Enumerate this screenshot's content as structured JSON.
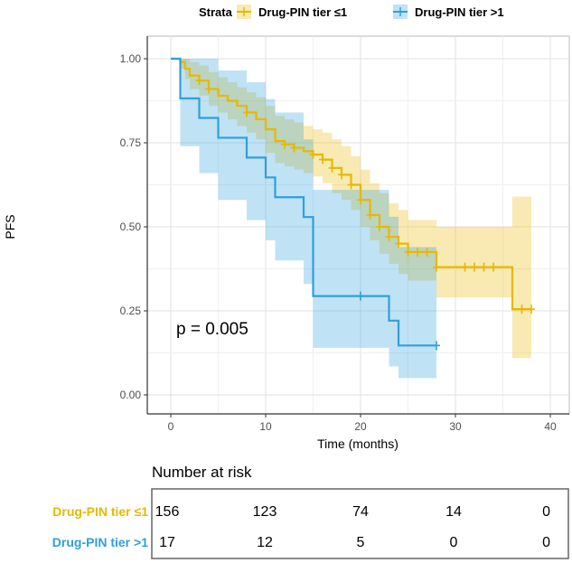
{
  "chart_data": {
    "type": "line",
    "subtype": "kaplan-meier",
    "title": "",
    "xlabel": "Time (months)",
    "ylabel": "PFS",
    "xlim": [
      0,
      40
    ],
    "ylim": [
      0,
      1
    ],
    "xticks": [
      "0",
      "10",
      "20",
      "30",
      "40"
    ],
    "yticks": [
      "0.00",
      "0.25",
      "0.50",
      "0.75",
      "1.00"
    ],
    "grid": true,
    "legend": {
      "title": "Strata",
      "placement": "top"
    },
    "annotation": "p = 0.005",
    "series": [
      {
        "name": "Drug-PIN tier ≤1",
        "color": "#E7B800",
        "times": [
          0,
          1,
          1.5,
          2,
          3,
          4,
          5,
          6,
          7,
          8,
          9,
          10,
          11,
          12,
          13,
          14,
          15,
          16,
          17,
          18,
          19,
          20,
          21,
          22,
          23,
          24,
          25,
          28,
          36
        ],
        "surv": [
          1,
          0.99,
          0.97,
          0.95,
          0.935,
          0.91,
          0.89,
          0.875,
          0.86,
          0.84,
          0.82,
          0.79,
          0.755,
          0.745,
          0.735,
          0.725,
          0.715,
          0.7,
          0.675,
          0.655,
          0.625,
          0.58,
          0.535,
          0.5,
          0.47,
          0.45,
          0.425,
          0.38,
          0.255
        ],
        "lower": [
          1,
          0.97,
          0.94,
          0.91,
          0.89,
          0.86,
          0.84,
          0.82,
          0.8,
          0.78,
          0.76,
          0.72,
          0.69,
          0.68,
          0.67,
          0.66,
          0.65,
          0.63,
          0.6,
          0.58,
          0.55,
          0.5,
          0.46,
          0.42,
          0.39,
          0.36,
          0.34,
          0.29,
          0.11
        ],
        "upper": [
          1,
          1,
          1,
          0.99,
          0.98,
          0.96,
          0.945,
          0.93,
          0.915,
          0.9,
          0.885,
          0.86,
          0.83,
          0.82,
          0.81,
          0.8,
          0.79,
          0.78,
          0.76,
          0.74,
          0.71,
          0.67,
          0.63,
          0.6,
          0.57,
          0.55,
          0.52,
          0.5,
          0.59
        ],
        "end": 38,
        "censored": [
          3,
          4,
          8,
          12,
          13,
          15,
          16,
          17,
          18,
          19,
          20,
          21,
          22,
          23,
          24,
          25,
          26,
          27,
          28,
          31,
          32,
          33,
          34,
          37,
          38
        ]
      },
      {
        "name": "Drug-PIN tier >1",
        "color": "#2E9FDF",
        "times": [
          0,
          1,
          3,
          5,
          8,
          10,
          11,
          14,
          15,
          23,
          24
        ],
        "surv": [
          1,
          0.882,
          0.824,
          0.765,
          0.706,
          0.647,
          0.588,
          0.529,
          0.294,
          0.221,
          0.147
        ],
        "lower": [
          1,
          0.74,
          0.66,
          0.58,
          0.52,
          0.46,
          0.4,
          0.33,
          0.14,
          0.085,
          0.05
        ],
        "upper": [
          1,
          1,
          1,
          0.965,
          0.93,
          0.88,
          0.84,
          0.76,
          0.61,
          0.53,
          0.44
        ],
        "end": 28,
        "censored": [
          20,
          28
        ]
      }
    ],
    "risk_table": {
      "title": "Number at risk",
      "times": [
        0,
        10,
        20,
        30,
        40
      ],
      "rows": [
        {
          "label": "Drug-PIN tier ≤1",
          "color": "#E7B800",
          "values": [
            "156",
            "123",
            "74",
            "14",
            "0"
          ]
        },
        {
          "label": "Drug-PIN tier >1",
          "color": "#2E9FDF",
          "values": [
            "17",
            "12",
            "5",
            "0",
            "0"
          ]
        }
      ]
    }
  }
}
